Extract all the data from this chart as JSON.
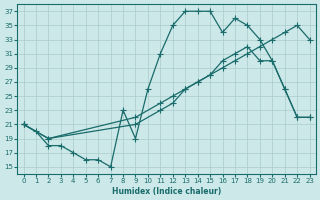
{
  "xlabel": "Humidex (Indice chaleur)",
  "bg_color": "#cce8e8",
  "grid_color": "#aacccc",
  "line_color": "#1a6b6b",
  "xlim": [
    -0.5,
    23.5
  ],
  "ylim": [
    14,
    38
  ],
  "yticks": [
    15,
    17,
    19,
    21,
    23,
    25,
    27,
    29,
    31,
    33,
    35,
    37
  ],
  "xticks": [
    0,
    1,
    2,
    3,
    4,
    5,
    6,
    7,
    8,
    9,
    10,
    11,
    12,
    13,
    14,
    15,
    16,
    17,
    18,
    19,
    20,
    21,
    22,
    23
  ],
  "line1_x": [
    0,
    1,
    2,
    3,
    4,
    5,
    6,
    7,
    8,
    9,
    10,
    11,
    12,
    13,
    14,
    15,
    16,
    17,
    18,
    19,
    20,
    21,
    22,
    23
  ],
  "line1_y": [
    21,
    20,
    18,
    18,
    17,
    16,
    16,
    15,
    23,
    19,
    26,
    31,
    35,
    37,
    37,
    37,
    34,
    36,
    35,
    33,
    30,
    26,
    22,
    22
  ],
  "line2_x": [
    0,
    2,
    9,
    11,
    12,
    13,
    14,
    15,
    16,
    17,
    18,
    19,
    20,
    21,
    22,
    23
  ],
  "line2_y": [
    21,
    19,
    22,
    24,
    25,
    26,
    27,
    28,
    30,
    31,
    32,
    30,
    30,
    26,
    22,
    22
  ],
  "line3_x": [
    0,
    2,
    9,
    11,
    12,
    13,
    14,
    15,
    16,
    17,
    18,
    19,
    20,
    21,
    22,
    23
  ],
  "line3_y": [
    21,
    19,
    21,
    23,
    24,
    26,
    27,
    28,
    29,
    30,
    31,
    32,
    33,
    34,
    35,
    33
  ]
}
